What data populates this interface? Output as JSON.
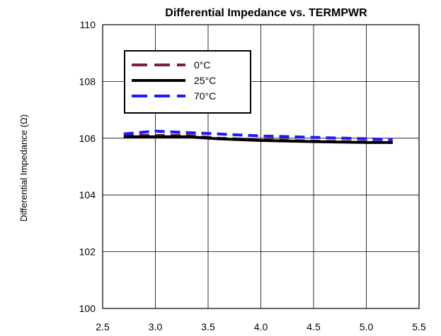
{
  "chart_data": {
    "type": "line",
    "title": "Differential Impedance vs. TERMPWR",
    "xlabel": "",
    "ylabel": "Differential Impedance (Ω)",
    "xlim": [
      2.5,
      5.5
    ],
    "ylim": [
      100,
      110
    ],
    "xticks": [
      "2.5",
      "3.0",
      "3.5",
      "4.0",
      "4.5",
      "5.0",
      "5.5"
    ],
    "yticks": [
      "100",
      "102",
      "104",
      "106",
      "108",
      "110"
    ],
    "grid": true,
    "legend_position": "top-left",
    "series": [
      {
        "name": "0°C",
        "color": "#7a1f3d",
        "style": "dashed",
        "x": [
          2.7,
          3.0,
          3.3,
          3.6,
          4.0,
          4.5,
          5.0,
          5.25
        ],
        "y": [
          106.1,
          106.1,
          106.1,
          106.0,
          105.95,
          105.9,
          105.87,
          105.85
        ]
      },
      {
        "name": "25°C",
        "color": "#000000",
        "style": "solid",
        "x": [
          2.7,
          3.0,
          3.3,
          3.6,
          4.0,
          4.5,
          5.0,
          5.25
        ],
        "y": [
          106.05,
          106.05,
          106.05,
          105.98,
          105.92,
          105.88,
          105.85,
          105.85
        ]
      },
      {
        "name": "70°C",
        "color": "#1a1aff",
        "style": "dashed",
        "x": [
          2.7,
          3.0,
          3.3,
          3.6,
          4.0,
          4.5,
          5.0,
          5.25
        ],
        "y": [
          106.15,
          106.25,
          106.2,
          106.15,
          106.08,
          106.03,
          105.98,
          105.95
        ]
      }
    ]
  }
}
